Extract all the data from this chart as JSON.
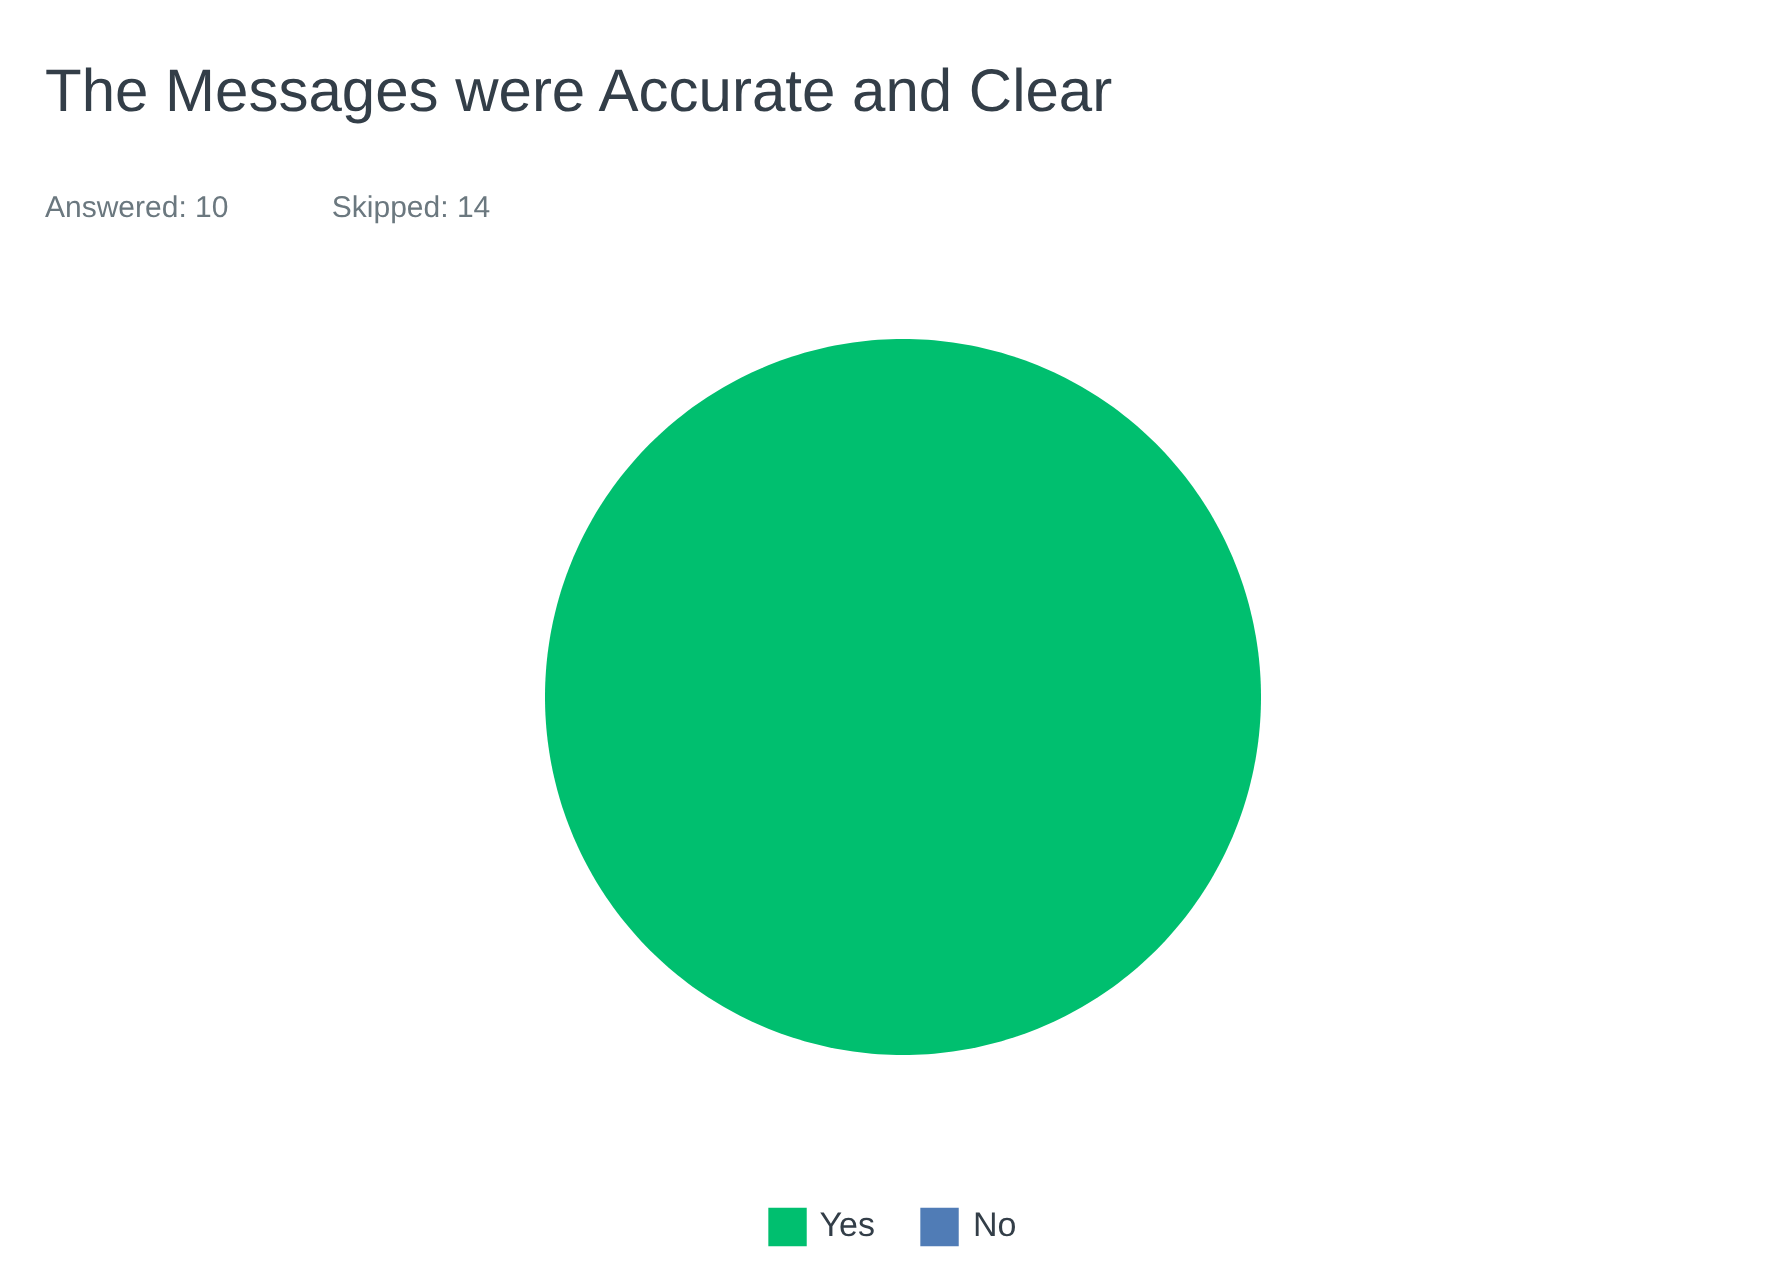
{
  "chart_data": {
    "type": "pie",
    "title": "The Messages were Accurate and Clear",
    "annotations": [
      "Answered: 10",
      "Skipped: 14"
    ],
    "categories": [
      "Yes",
      "No"
    ],
    "values": [
      100,
      0
    ],
    "colors": [
      "#00bf6f",
      "#507cb6"
    ],
    "legend": "bottom"
  }
}
